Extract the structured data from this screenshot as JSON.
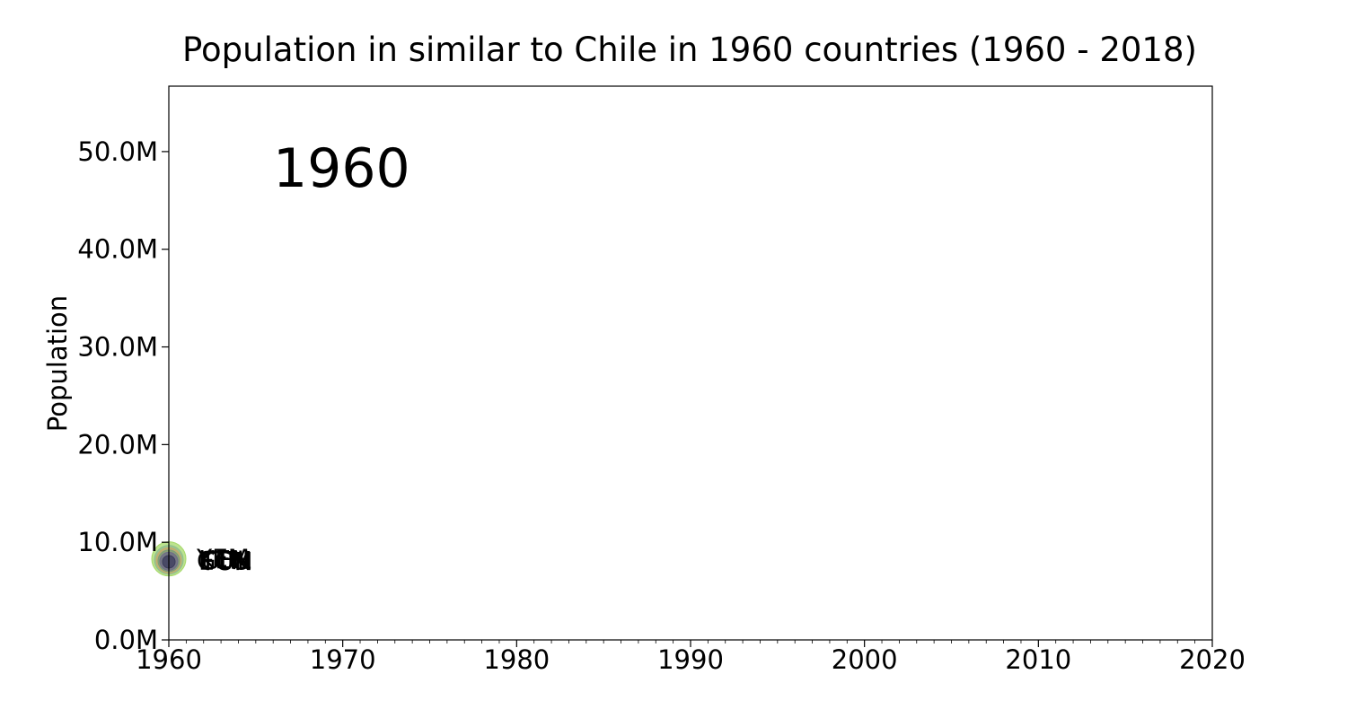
{
  "chart_data": {
    "type": "scatter",
    "title": "Population in similar to Chile in 1960 countries (1960 - 2018)",
    "ylabel": "Population",
    "xlabel": "",
    "xlim": [
      1960,
      2020
    ],
    "ylim": [
      0,
      56700000
    ],
    "x_ticks": [
      1960,
      1970,
      1980,
      1990,
      2000,
      2010,
      2020
    ],
    "x_tick_labels": [
      "1960",
      "1970",
      "1980",
      "1990",
      "2000",
      "2010",
      "2020"
    ],
    "y_ticks": [
      0,
      10000000,
      20000000,
      30000000,
      40000000,
      50000000
    ],
    "y_tick_labels": [
      "0.0M",
      "10.0M",
      "20.0M",
      "30.0M",
      "40.0M",
      "50.0M"
    ],
    "x_minor_step": 1,
    "year_label": "1960",
    "grid": false,
    "points": [
      {
        "label": "YEM",
        "x": 1960,
        "y": 8300000,
        "color": "#a6d96a"
      },
      {
        "label": "KEN",
        "x": 1960,
        "y": 8200000,
        "color": "#8fbc8f"
      },
      {
        "label": "CHL",
        "x": 1960,
        "y": 8150000,
        "color": "#c7a96b"
      },
      {
        "label": "GTM",
        "x": 1960,
        "y": 8100000,
        "color": "#7a9b76"
      },
      {
        "label": "ECU",
        "x": 1960,
        "y": 8050000,
        "color": "#6d6a8a"
      },
      {
        "label": "TUN",
        "x": 1960,
        "y": 8000000,
        "color": "#3b3b5c"
      }
    ]
  }
}
